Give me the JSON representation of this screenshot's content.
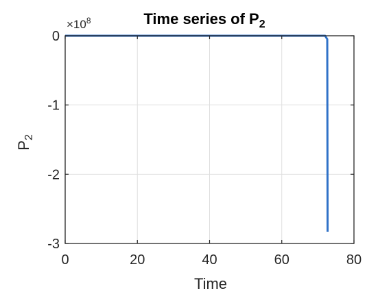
{
  "chart_data": {
    "type": "line",
    "title": {
      "main": "Time series of P",
      "sub": "2"
    },
    "xlabel": "Time",
    "ylabel": {
      "main": "P",
      "sub": "2"
    },
    "y_exponent_label": {
      "prefix": "×10",
      "power": "8"
    },
    "xlim": [
      0,
      80
    ],
    "ylim": [
      -3,
      0
    ],
    "xticks": [
      0,
      20,
      40,
      60,
      80
    ],
    "yticks": [
      0,
      -1,
      -2,
      -3
    ],
    "xtick_labels": [
      "0",
      "20",
      "40",
      "60",
      "80"
    ],
    "ytick_labels": [
      "0",
      "-1",
      "-2",
      "-3"
    ],
    "grid": true,
    "legend": "none",
    "line_color": "#3072C8",
    "series": [
      {
        "x": [
          0,
          10,
          20,
          30,
          40,
          50,
          60,
          70,
          72,
          72.6,
          72.7
        ],
        "y": [
          0,
          0,
          0,
          0,
          0,
          0,
          0,
          0,
          0,
          -0.05,
          -2.83
        ]
      }
    ]
  }
}
